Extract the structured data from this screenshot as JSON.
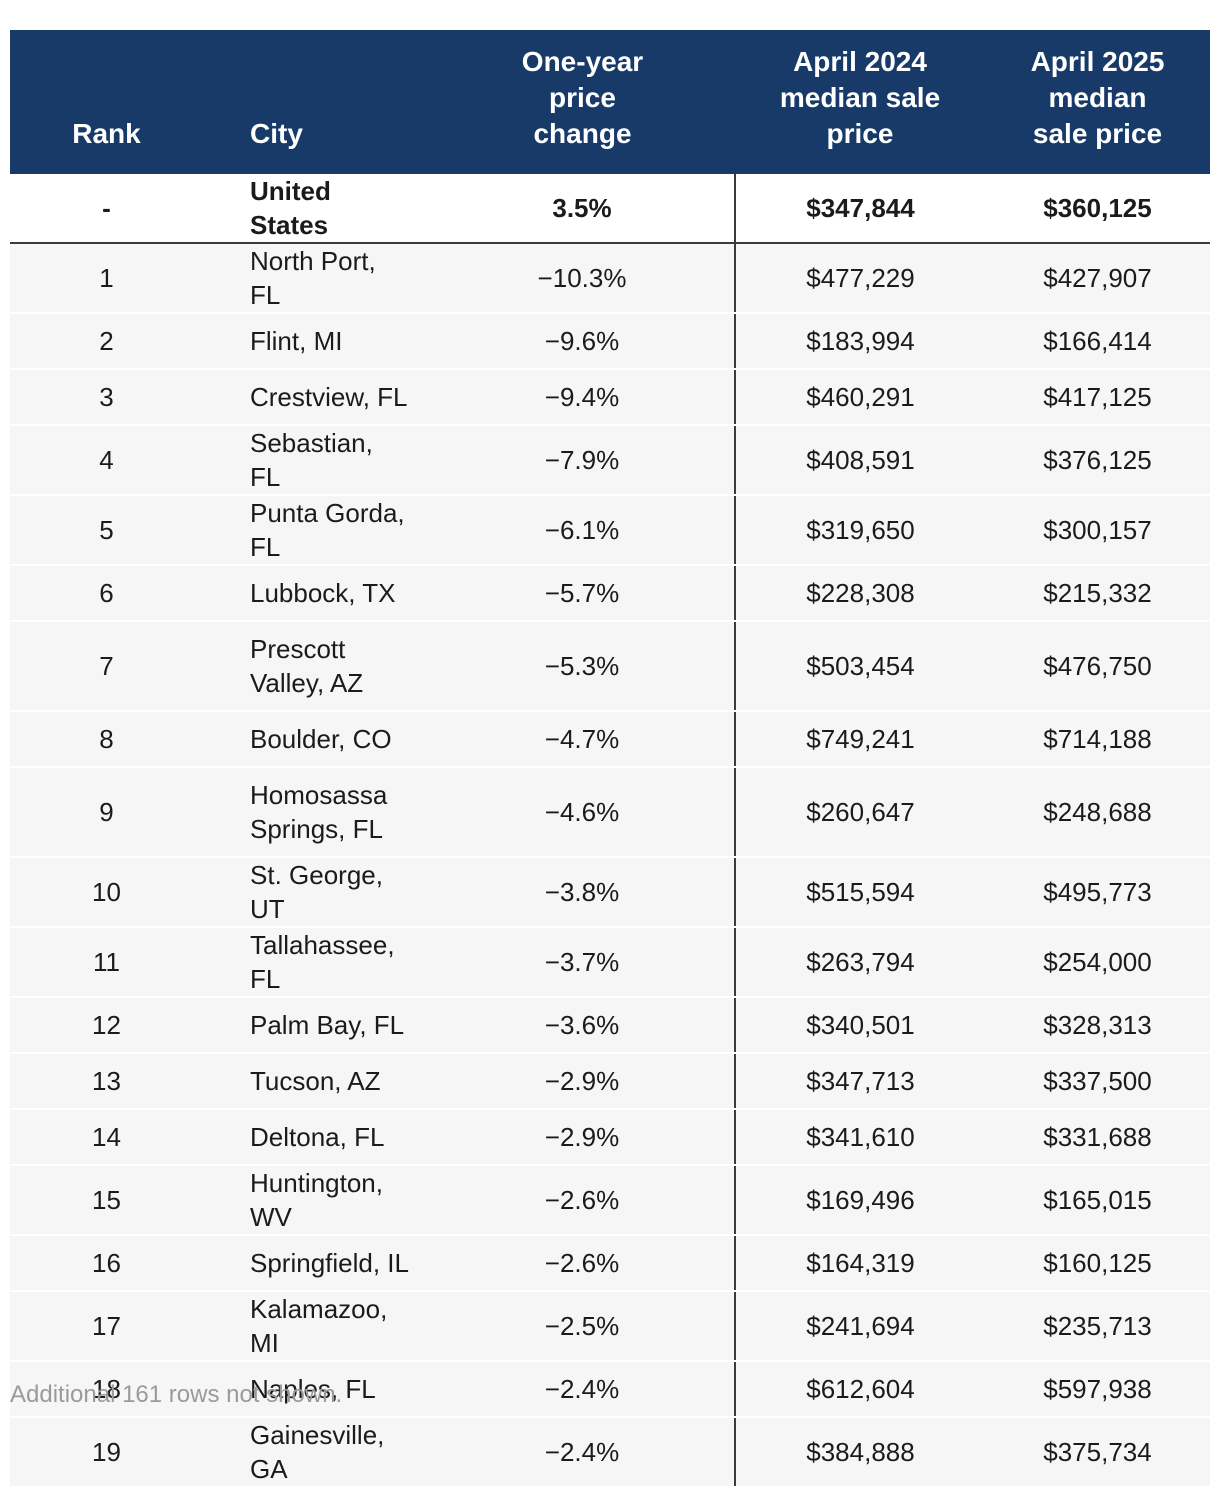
{
  "chart_data": {
    "type": "table",
    "columns": [
      "Rank",
      "City",
      "One-year price change",
      "April 2024 median sale price",
      "April 2025 median sale price"
    ],
    "header_labels": {
      "rank": "Rank",
      "city": "City",
      "change": [
        "One-year",
        "price",
        "change"
      ],
      "apr2024": [
        "April 2024",
        "median sale",
        "price"
      ],
      "apr2025": [
        "April 2025",
        "median",
        "sale price"
      ]
    },
    "national": {
      "rank": "-",
      "city": "United States",
      "change": "3.5%",
      "apr2024": "$347,844",
      "apr2025": "$360,125"
    },
    "rows": [
      {
        "rank": "1",
        "city": "North Port, FL",
        "change": "−10.3%",
        "apr2024": "$477,229",
        "apr2025": "$427,907"
      },
      {
        "rank": "2",
        "city": "Flint, MI",
        "change": "−9.6%",
        "apr2024": "$183,994",
        "apr2025": "$166,414"
      },
      {
        "rank": "3",
        "city": "Crestview, FL",
        "change": "−9.4%",
        "apr2024": "$460,291",
        "apr2025": "$417,125"
      },
      {
        "rank": "4",
        "city": "Sebastian, FL",
        "change": "−7.9%",
        "apr2024": "$408,591",
        "apr2025": "$376,125"
      },
      {
        "rank": "5",
        "city": "Punta Gorda, FL",
        "change": "−6.1%",
        "apr2024": "$319,650",
        "apr2025": "$300,157"
      },
      {
        "rank": "6",
        "city": "Lubbock, TX",
        "change": "−5.7%",
        "apr2024": "$228,308",
        "apr2025": "$215,332"
      },
      {
        "rank": "7",
        "city": "Prescott Valley, AZ",
        "change": "−5.3%",
        "apr2024": "$503,454",
        "apr2025": "$476,750"
      },
      {
        "rank": "8",
        "city": "Boulder, CO",
        "change": "−4.7%",
        "apr2024": "$749,241",
        "apr2025": "$714,188"
      },
      {
        "rank": "9",
        "city": "Homosassa Springs, FL",
        "change": "−4.6%",
        "apr2024": "$260,647",
        "apr2025": "$248,688"
      },
      {
        "rank": "10",
        "city": "St. George, UT",
        "change": "−3.8%",
        "apr2024": "$515,594",
        "apr2025": "$495,773"
      },
      {
        "rank": "11",
        "city": "Tallahassee, FL",
        "change": "−3.7%",
        "apr2024": "$263,794",
        "apr2025": "$254,000"
      },
      {
        "rank": "12",
        "city": "Palm Bay, FL",
        "change": "−3.6%",
        "apr2024": "$340,501",
        "apr2025": "$328,313"
      },
      {
        "rank": "13",
        "city": "Tucson, AZ",
        "change": "−2.9%",
        "apr2024": "$347,713",
        "apr2025": "$337,500"
      },
      {
        "rank": "14",
        "city": "Deltona, FL",
        "change": "−2.9%",
        "apr2024": "$341,610",
        "apr2025": "$331,688"
      },
      {
        "rank": "15",
        "city": "Huntington, WV",
        "change": "−2.6%",
        "apr2024": "$169,496",
        "apr2025": "$165,015"
      },
      {
        "rank": "16",
        "city": "Springfield, IL",
        "change": "−2.6%",
        "apr2024": "$164,319",
        "apr2025": "$160,125"
      },
      {
        "rank": "17",
        "city": "Kalamazoo, MI",
        "change": "−2.5%",
        "apr2024": "$241,694",
        "apr2025": "$235,713"
      },
      {
        "rank": "18",
        "city": "Naples, FL",
        "change": "−2.4%",
        "apr2024": "$612,604",
        "apr2025": "$597,938"
      },
      {
        "rank": "19",
        "city": "Gainesville, GA",
        "change": "−2.4%",
        "apr2024": "$384,888",
        "apr2025": "$375,734"
      }
    ],
    "note": "Additional 161 rows not shown."
  },
  "colors": {
    "header_bg": "#173a69",
    "row_bg": "#f6f6f6",
    "note": "#9a9a9a"
  }
}
